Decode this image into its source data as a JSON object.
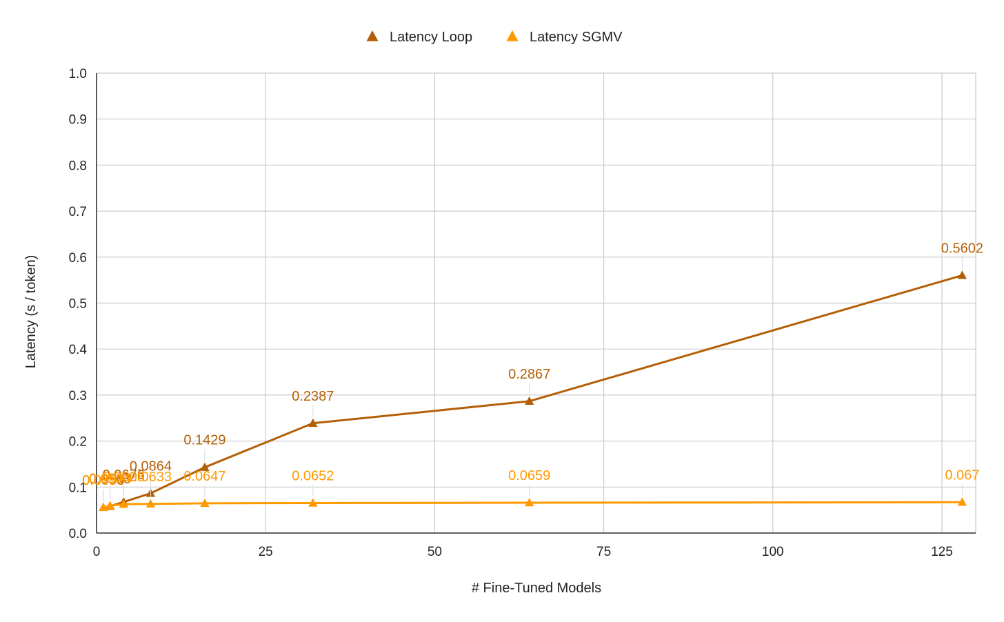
{
  "chart_data": {
    "type": "line",
    "title": "",
    "xlabel": "# Fine-Tuned Models",
    "ylabel": "Latency (s / token)",
    "xlim": [
      0,
      130
    ],
    "ylim": [
      0,
      1.0
    ],
    "xticks": [
      0,
      25,
      50,
      75,
      100,
      125
    ],
    "xtick_labels": [
      "0",
      "25",
      "50",
      "75",
      "100",
      "125"
    ],
    "yticks": [
      0,
      0.1,
      0.2,
      0.3,
      0.4,
      0.5,
      0.6,
      0.7,
      0.8,
      0.9,
      1.0
    ],
    "ytick_labels": [
      "0.0",
      "0.1",
      "0.2",
      "0.3",
      "0.4",
      "0.5",
      "0.6",
      "0.7",
      "0.8",
      "0.9",
      "1.0"
    ],
    "grid": true,
    "legend_position": "top-center",
    "marker": "triangle",
    "series": [
      {
        "name": "Latency Loop",
        "color": "#B45F06",
        "x": [
          1,
          2,
          4,
          8,
          16,
          32,
          64,
          128
        ],
        "y": [
          0.0558,
          0.0583,
          0.0676,
          0.0864,
          0.1429,
          0.2387,
          0.2867,
          0.5602
        ],
        "labels": [
          "0.0558",
          "0.0583",
          "0.0676",
          "0.0864",
          "0.1429",
          "0.2387",
          "0.2867",
          "0.5602"
        ]
      },
      {
        "name": "Latency SGMV",
        "color": "#FF9900",
        "x": [
          1,
          2,
          4,
          8,
          16,
          32,
          64,
          128
        ],
        "y": [
          0.0557,
          0.0594,
          0.0628,
          0.0633,
          0.0647,
          0.0652,
          0.0659,
          0.067
        ],
        "labels": [
          "0.0557",
          "0.0594",
          "0.0628",
          "0.0633",
          "0.0647",
          "0.0652",
          "0.0659",
          "0.067"
        ]
      }
    ]
  }
}
